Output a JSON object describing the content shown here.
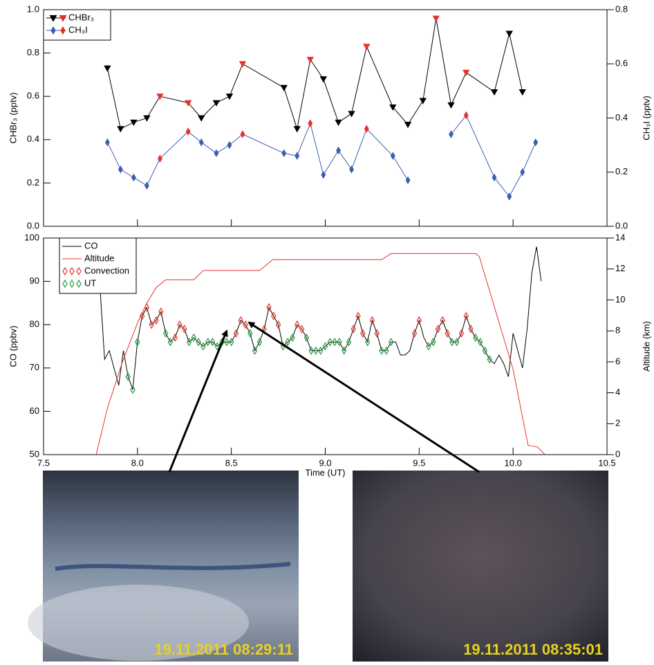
{
  "chart_data": [
    {
      "type": "line",
      "ylabel": "CHBr₃ (pptv)",
      "y2label": "CH₃I (pptv)",
      "xlim": [
        7.5,
        10.5
      ],
      "ylim": [
        0,
        1.0
      ],
      "yticks": [
        {
          "value": 0,
          "label": "0.0"
        },
        0.2,
        0.4,
        0.6,
        0.8,
        {
          "value": 1.0,
          "label": "1.0"
        }
      ],
      "y2lim": [
        0,
        0.8
      ],
      "y2ticks": [
        {
          "value": 0,
          "label": "0.0"
        },
        0.2,
        0.4,
        0.6,
        0.8
      ],
      "legend": "upper left",
      "x": [
        7.84,
        7.91,
        7.98,
        8.05,
        8.12,
        8.27,
        8.34,
        8.42,
        8.49,
        8.56,
        8.78,
        8.85,
        8.92,
        8.99,
        9.07,
        9.14,
        9.22,
        9.36,
        9.44,
        9.52,
        9.59,
        9.67,
        9.75,
        9.9,
        9.98,
        10.05,
        10.12
      ],
      "series": [
        {
          "name": "CHBr₃",
          "color": "#000000",
          "mode": "lines+markers",
          "marker": "triangle-down",
          "values": [
            0.73,
            0.45,
            0.48,
            0.5,
            0.6,
            0.57,
            0.5,
            0.57,
            0.6,
            0.75,
            0.64,
            0.45,
            0.77,
            0.68,
            0.48,
            0.52,
            0.83,
            0.55,
            0.47,
            0.58,
            0.96,
            0.56,
            0.71,
            0.62,
            0.89,
            0.62,
            null
          ],
          "marker_colors": [
            "#000000",
            "#000000",
            "#000000",
            "#000000",
            "#e8312a",
            "#e8312a",
            "#000000",
            "#000000",
            "#000000",
            "#e8312a",
            "#000000",
            "#000000",
            "#e8312a",
            "#000000",
            "#000000",
            "#000000",
            "#e8312a",
            "#000000",
            "#000000",
            "#000000",
            "#e8312a",
            "#000000",
            "#e8312a",
            "#000000",
            "#000000",
            "#000000",
            "#000000"
          ]
        },
        {
          "name": "CH₃I",
          "color": "#3a5fb0",
          "mode": "lines+markers",
          "marker": "diamond",
          "axis": "y2",
          "values": [
            0.31,
            0.21,
            0.18,
            0.15,
            0.25,
            0.35,
            0.31,
            0.27,
            0.3,
            0.34,
            0.27,
            0.26,
            0.38,
            0.19,
            0.28,
            0.21,
            0.36,
            0.26,
            0.17,
            null,
            null,
            0.34,
            0.41,
            0.18,
            0.11,
            0.2,
            0.31
          ],
          "marker_colors": [
            "#3a5fb0",
            "#3a5fb0",
            "#3a5fb0",
            "#3a5fb0",
            "#e8312a",
            "#e8312a",
            "#3a5fb0",
            "#3a5fb0",
            "#3a5fb0",
            "#e8312a",
            "#3a5fb0",
            "#3a5fb0",
            "#e8312a",
            "#3a5fb0",
            "#3a5fb0",
            "#3a5fb0",
            "#e8312a",
            "#3a5fb0",
            "#3a5fb0",
            "#3a5fb0",
            "#3a5fb0",
            "#3a5fb0",
            "#e8312a",
            "#3a5fb0",
            "#3a5fb0",
            "#3a5fb0",
            "#3a5fb0"
          ]
        }
      ]
    },
    {
      "type": "line",
      "xlabel": "Time (UT)",
      "ylabel": "CO (ppbv)",
      "y2label": "Altitude (km)",
      "xlim": [
        7.5,
        10.5
      ],
      "xticks": [
        7.5,
        {
          "value": 8.0,
          "label": "8.0"
        },
        8.5,
        {
          "value": 9.0,
          "label": "9.0"
        },
        9.5,
        {
          "value": 10.0,
          "label": "10.0"
        },
        10.5
      ],
      "ylim": [
        50,
        100
      ],
      "yticks": [
        50,
        60,
        70,
        80,
        90,
        100
      ],
      "y2lim": [
        0,
        14
      ],
      "y2ticks": [
        0,
        2,
        4,
        6,
        8,
        10,
        12,
        14
      ],
      "legend": "upper left",
      "x": [
        7.8,
        7.825,
        7.85,
        7.875,
        7.9,
        7.925,
        7.95,
        7.975,
        8.0,
        8.025,
        8.05,
        8.075,
        8.1,
        8.125,
        8.15,
        8.175,
        8.2,
        8.225,
        8.25,
        8.275,
        8.3,
        8.325,
        8.35,
        8.375,
        8.4,
        8.425,
        8.45,
        8.475,
        8.5,
        8.525,
        8.55,
        8.575,
        8.6,
        8.625,
        8.65,
        8.675,
        8.7,
        8.725,
        8.75,
        8.775,
        8.8,
        8.825,
        8.85,
        8.875,
        8.9,
        8.925,
        8.95,
        8.975,
        9.0,
        9.025,
        9.05,
        9.075,
        9.1,
        9.125,
        9.15,
        9.175,
        9.2,
        9.225,
        9.25,
        9.275,
        9.3,
        9.325,
        9.35,
        9.375,
        9.4,
        9.425,
        9.45,
        9.475,
        9.5,
        9.525,
        9.55,
        9.575,
        9.6,
        9.625,
        9.65,
        9.675,
        9.7,
        9.725,
        9.75,
        9.775,
        9.8,
        9.825,
        9.85,
        9.875,
        9.9,
        9.925,
        9.95,
        9.975,
        10.0,
        10.025,
        10.05,
        10.075,
        10.1,
        10.125,
        10.15
      ],
      "series": [
        {
          "name": "CO",
          "color": "#000000",
          "mode": "lines",
          "values": [
            89,
            72,
            74,
            70,
            66,
            74,
            68,
            65,
            76,
            82,
            84,
            80,
            81,
            83,
            78,
            76,
            77,
            80,
            79,
            76,
            77,
            76,
            75,
            76,
            76,
            75,
            76,
            76,
            76,
            78,
            81,
            80,
            78,
            74,
            76,
            79,
            84,
            82,
            80,
            75,
            76,
            77,
            80,
            79,
            77,
            74,
            74,
            74,
            75,
            76,
            76,
            76,
            74,
            76,
            79,
            82,
            78,
            76,
            81,
            78,
            74,
            74,
            76,
            76,
            73,
            73,
            74,
            78,
            81,
            77,
            75,
            76,
            79,
            81,
            78,
            76,
            76,
            78,
            82,
            79,
            77,
            76,
            74,
            72,
            71,
            73,
            71,
            68,
            78,
            74,
            70,
            79,
            92,
            98,
            90
          ]
        },
        {
          "name": "Altitude",
          "color": "#e8312a",
          "mode": "lines",
          "axis": "y2",
          "x": [
            7.78,
            7.84,
            7.92,
            8.0,
            8.05,
            8.1,
            8.15,
            8.3,
            8.35,
            8.65,
            8.72,
            9.3,
            9.35,
            9.8,
            9.82,
            10.0,
            10.08,
            10.13,
            10.17
          ],
          "values": [
            0,
            3,
            6,
            8.5,
            9.8,
            10.8,
            11.3,
            11.3,
            11.9,
            11.9,
            12.6,
            12.6,
            13,
            13,
            12.8,
            5.5,
            0.6,
            0.5,
            0
          ]
        },
        {
          "name": "Convection",
          "color": "#e8312a",
          "mode": "markers",
          "marker": "diamond-open",
          "values": [
            null,
            null,
            null,
            null,
            null,
            null,
            null,
            null,
            null,
            82,
            84,
            80,
            81,
            83,
            null,
            null,
            77,
            80,
            79,
            null,
            null,
            null,
            null,
            null,
            null,
            null,
            null,
            null,
            null,
            78,
            81,
            80,
            null,
            null,
            null,
            79,
            84,
            82,
            80,
            null,
            null,
            null,
            80,
            79,
            null,
            null,
            null,
            null,
            null,
            null,
            null,
            null,
            null,
            null,
            79,
            82,
            78,
            null,
            81,
            78,
            null,
            null,
            null,
            null,
            null,
            null,
            null,
            78,
            81,
            null,
            null,
            null,
            79,
            81,
            78,
            null,
            null,
            78,
            82,
            79,
            null,
            null,
            null,
            null,
            null,
            null,
            null,
            null,
            null,
            null,
            null,
            null,
            null,
            null,
            null
          ]
        },
        {
          "name": "UT",
          "color": "#1e9a3c",
          "mode": "markers",
          "marker": "diamond-open",
          "values": [
            null,
            null,
            null,
            null,
            null,
            null,
            68,
            65,
            76,
            null,
            null,
            null,
            null,
            null,
            78,
            76,
            null,
            null,
            null,
            76,
            77,
            76,
            75,
            76,
            76,
            75,
            76,
            76,
            76,
            null,
            null,
            null,
            78,
            74,
            76,
            null,
            null,
            null,
            null,
            75,
            76,
            77,
            null,
            null,
            77,
            74,
            74,
            74,
            75,
            76,
            76,
            76,
            74,
            76,
            null,
            null,
            null,
            76,
            null,
            null,
            74,
            74,
            76,
            null,
            null,
            null,
            null,
            null,
            null,
            null,
            75,
            76,
            null,
            null,
            null,
            76,
            76,
            null,
            null,
            null,
            77,
            76,
            74,
            72,
            null,
            null,
            null,
            null,
            null,
            null,
            null,
            null,
            null,
            null,
            null
          ]
        }
      ]
    }
  ],
  "photos": [
    {
      "timestamp": "19.11.2011 08:29:11"
    },
    {
      "timestamp": "19.11.2011 08:35:01"
    }
  ]
}
